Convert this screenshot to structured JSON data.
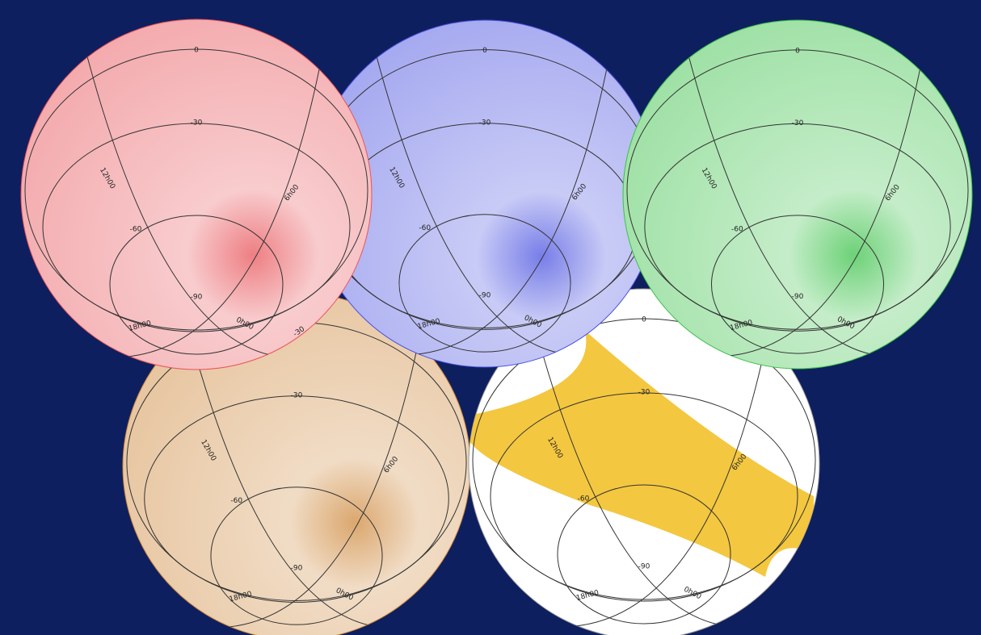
{
  "globes": [
    {
      "color": "#e8545a",
      "labels": [
        "0",
        "-30",
        "12h00",
        "6h00",
        "-60",
        "-90",
        "18h00",
        "0h00",
        "-30"
      ]
    },
    {
      "color": "#4a52e0",
      "labels": [
        "0",
        "-30",
        "12h00",
        "6h00",
        "-60",
        "-90",
        "18h00",
        "0h00"
      ]
    },
    {
      "color": "#3cc24a",
      "labels": [
        "0",
        "-30",
        "12h00",
        "6h00",
        "-60",
        "-90",
        "18h00",
        "0h00"
      ]
    },
    {
      "color": "#cf8a3e",
      "labels": [
        "-30",
        "12h00",
        "6h00",
        "-60",
        "-90",
        "18h00",
        "0h00"
      ]
    },
    {
      "color": "#f2bd1f",
      "labels": [
        "0",
        "-30",
        "12h00",
        "6h00",
        "-60",
        "-90",
        "18h00",
        "0h00"
      ]
    }
  ]
}
